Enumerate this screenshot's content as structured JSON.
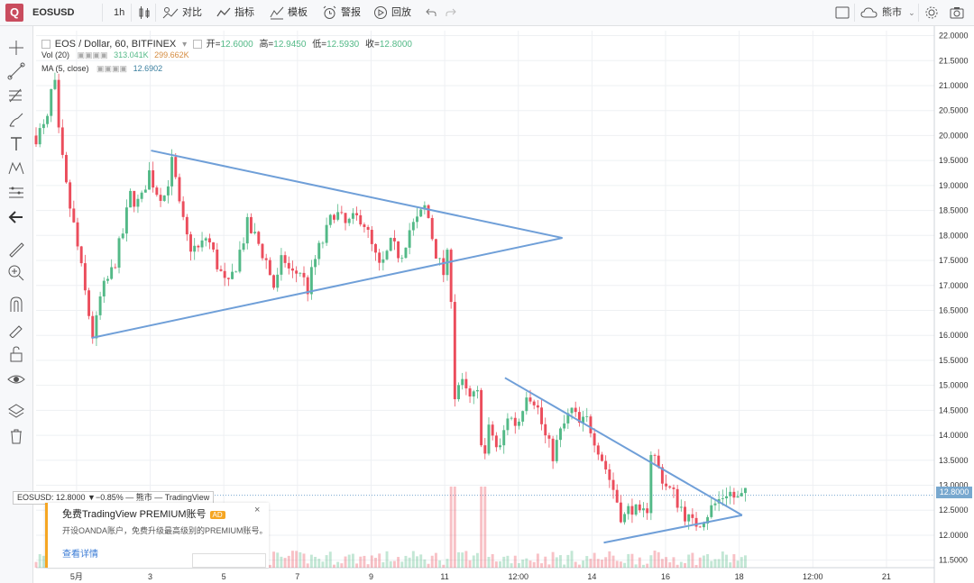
{
  "toolbar": {
    "symbol": "EOSUSD",
    "interval": "1h",
    "compare": "对比",
    "indicators": "指标",
    "templates": "模板",
    "alerts": "警报",
    "replay": "回放",
    "market": "熊市"
  },
  "legend": {
    "title": "EOS / Dollar, 60, BITFINEX",
    "open_label": "开=",
    "open": "12.6000",
    "high_label": "高=",
    "high": "12.9450",
    "low_label": "低=",
    "low": "12.5930",
    "close_label": "收=",
    "close": "12.8000",
    "vol_label": "Vol (20)",
    "vol1": "313.041K",
    "vol2": "299.662K",
    "ma_label": "MA (5, close)",
    "ma_value": "12.6902"
  },
  "price_badge": "12.8000",
  "tooltip": "EOSUSD: 12.8000 ▼−0.85% — 熊市 — TradingView",
  "ad": {
    "title": "免费TradingView PREMIUM账号",
    "badge": "AD",
    "text": "开设OANDA账户，免费升级最高级别的PREMIUM账号。",
    "link": "查看详情",
    "close": "×"
  },
  "colors": {
    "up": "#53b987",
    "down": "#eb4d5c",
    "trend": "#6f9fd8",
    "ma": "#d58b3f"
  },
  "chart_data": {
    "type": "candlestick",
    "title": "EOS / Dollar, 60, BITFINEX",
    "x_ticks": [
      "5月",
      "3",
      "5",
      "7",
      "9",
      "11",
      "12:00",
      "14",
      "16",
      "18",
      "12:00",
      "21"
    ],
    "y_ticks": [
      "11.5000",
      "12.0000",
      "12.5000",
      "13.0000",
      "13.5000",
      "14.0000",
      "14.5000",
      "15.0000",
      "15.5000",
      "16.0000",
      "16.5000",
      "17.0000",
      "17.5000",
      "18.0000",
      "18.5000",
      "19.0000",
      "19.5000",
      "20.0000",
      "20.5000",
      "21.0000",
      "21.5000",
      "22.0000"
    ],
    "ylim": [
      11.35,
      22.1
    ],
    "last_price": 12.8,
    "price_path": [
      [
        0,
        20.0
      ],
      [
        1.2,
        20.2
      ],
      [
        2.0,
        21.3
      ],
      [
        2.3,
        20.3
      ],
      [
        3.3,
        19.0
      ],
      [
        4.4,
        18.0
      ],
      [
        5.5,
        16.8
      ],
      [
        6.4,
        15.9
      ],
      [
        7.2,
        16.8
      ],
      [
        8.5,
        17.3
      ],
      [
        9.6,
        18.0
      ],
      [
        10.5,
        18.8
      ],
      [
        11.6,
        18.6
      ],
      [
        12.5,
        19.3
      ],
      [
        13.4,
        18.9
      ],
      [
        14.3,
        18.8
      ],
      [
        15.2,
        19.5
      ],
      [
        16.0,
        18.5
      ],
      [
        17.0,
        17.8
      ],
      [
        18.2,
        17.7
      ],
      [
        19.0,
        18.0
      ],
      [
        20.0,
        17.5
      ],
      [
        21.3,
        16.9
      ],
      [
        22.4,
        17.5
      ],
      [
        23.5,
        18.2
      ],
      [
        24.6,
        17.9
      ],
      [
        25.6,
        17.5
      ],
      [
        26.6,
        16.9
      ],
      [
        27.5,
        17.6
      ],
      [
        28.4,
        17.2
      ],
      [
        29.4,
        17.3
      ],
      [
        30.2,
        16.9
      ],
      [
        31.2,
        17.6
      ],
      [
        32.2,
        18.0
      ],
      [
        33.2,
        18.5
      ],
      [
        34.4,
        18.2
      ],
      [
        35.4,
        18.3
      ],
      [
        36.3,
        18.4
      ],
      [
        37.3,
        17.8
      ],
      [
        38.3,
        17.3
      ],
      [
        39.5,
        17.8
      ],
      [
        40.6,
        17.6
      ],
      [
        41.5,
        18.1
      ],
      [
        42.5,
        18.3
      ],
      [
        43.4,
        18.6
      ],
      [
        44.3,
        17.8
      ],
      [
        45.3,
        17.2
      ],
      [
        46.0,
        17.7
      ],
      [
        46.3,
        16.4
      ],
      [
        46.6,
        14.8
      ],
      [
        47.2,
        15.1
      ],
      [
        48.2,
        14.7
      ],
      [
        49.2,
        14.8
      ],
      [
        49.8,
        13.4
      ],
      [
        50.5,
        14.2
      ],
      [
        51.5,
        13.6
      ],
      [
        52.5,
        14.4
      ],
      [
        53.6,
        14.2
      ],
      [
        54.6,
        14.9
      ],
      [
        55.6,
        14.7
      ],
      [
        56.6,
        14.0
      ],
      [
        57.5,
        13.6
      ],
      [
        58.5,
        14.1
      ],
      [
        59.6,
        14.5
      ],
      [
        60.5,
        14.2
      ],
      [
        61.4,
        14.3
      ],
      [
        62.5,
        13.8
      ],
      [
        63.5,
        13.3
      ],
      [
        64.5,
        12.8
      ],
      [
        65.3,
        12.3
      ],
      [
        66.3,
        12.6
      ],
      [
        67.3,
        12.3
      ],
      [
        68.1,
        12.6
      ],
      [
        68.5,
        13.8
      ],
      [
        69.1,
        13.4
      ],
      [
        70.1,
        13.0
      ],
      [
        71.0,
        12.8
      ],
      [
        72.0,
        12.5
      ],
      [
        73.0,
        12.2
      ],
      [
        74.0,
        12.3
      ],
      [
        75.0,
        12.5
      ],
      [
        76.0,
        12.7
      ],
      [
        77.0,
        12.9
      ],
      [
        78.0,
        12.7
      ],
      [
        79.0,
        12.8
      ]
    ],
    "volume_spikes_at_x": [
      46.6,
      49.8
    ],
    "trendlines": [
      {
        "name": "",
        "from": [
          12.8,
          19.7
        ],
        "to": [
          58.6,
          17.95
        ]
      },
      {
        "name": "",
        "from": [
          6.2,
          15.95
        ],
        "to": [
          58.6,
          17.95
        ]
      },
      {
        "name": "",
        "from": [
          52.2,
          15.15
        ],
        "to": [
          78.6,
          12.4
        ]
      },
      {
        "name": "",
        "from": [
          63.2,
          11.85
        ],
        "to": [
          78.6,
          12.4
        ]
      }
    ],
    "grid": true,
    "legend": "top-left"
  }
}
